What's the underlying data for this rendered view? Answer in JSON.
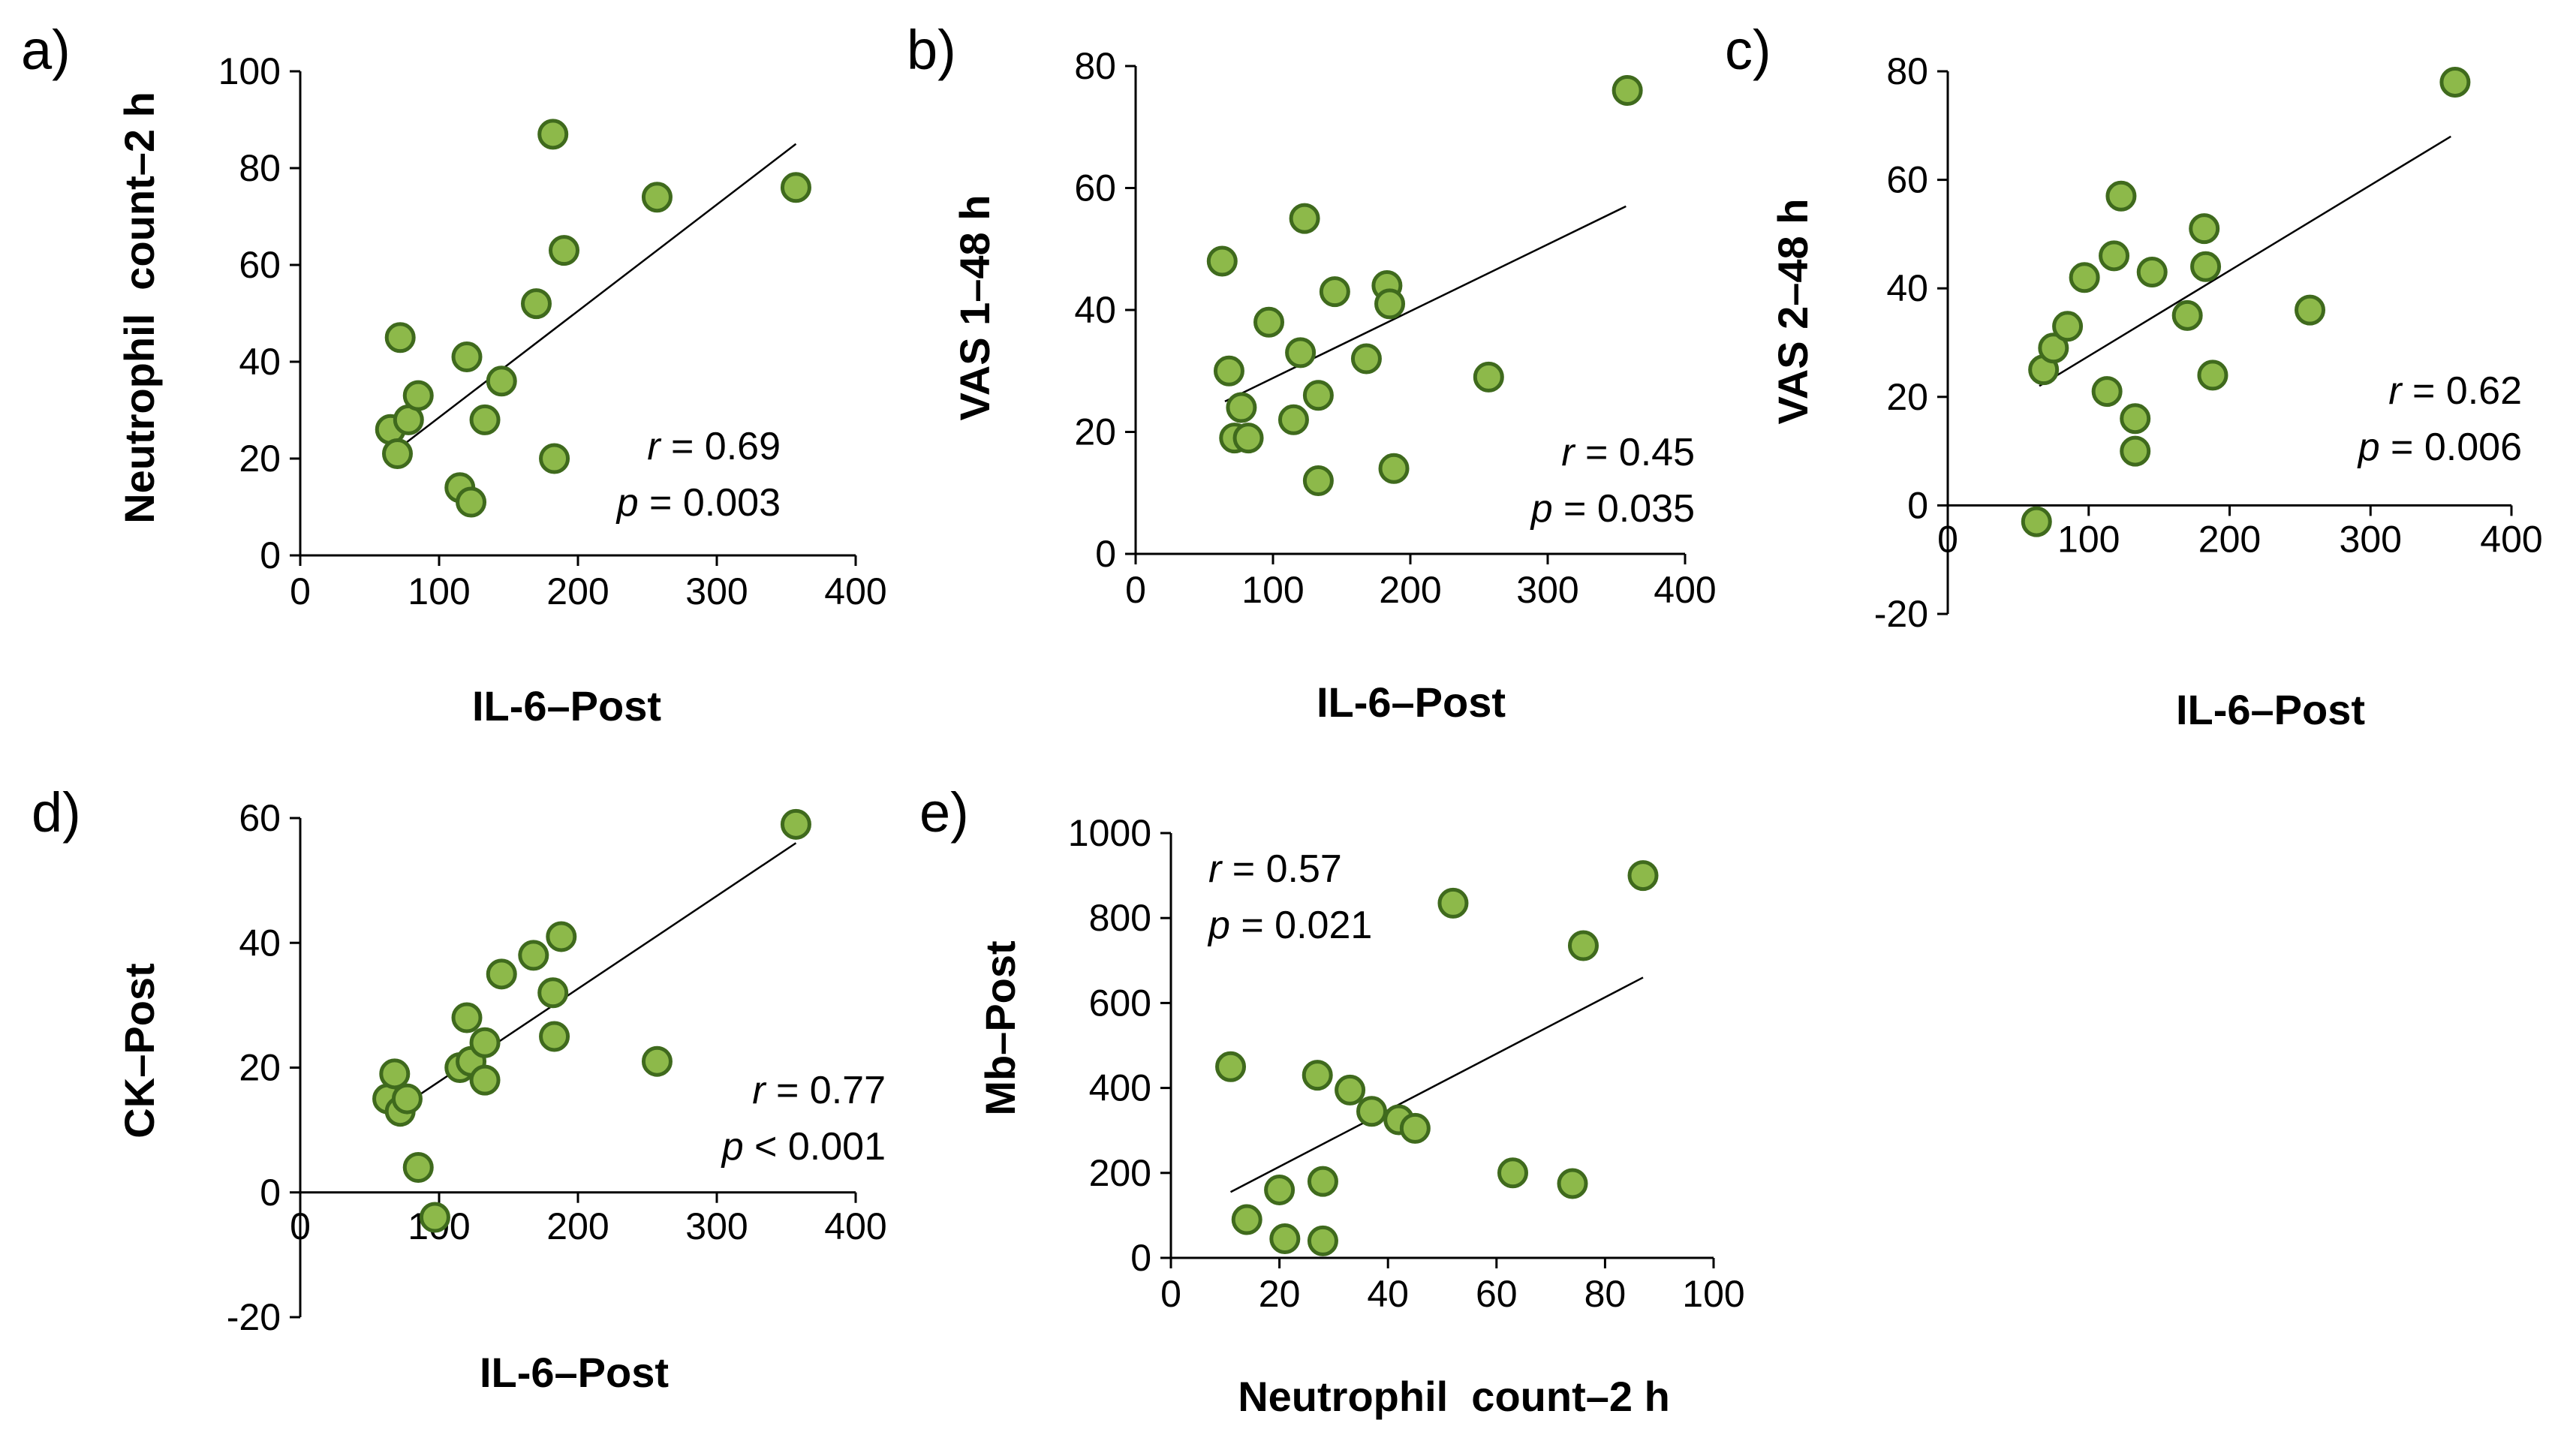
{
  "chart_data": [
    {
      "type": "scatter",
      "panel_label": "a)",
      "xlabel": "IL-6–Post",
      "ylabel": "Neutrophil  count–2 h",
      "xlim": [
        0,
        400
      ],
      "ylim": [
        0,
        100
      ],
      "xticks": [
        0,
        100,
        200,
        300,
        400
      ],
      "yticks": [
        0,
        20,
        40,
        60,
        80,
        100
      ],
      "points": [
        [
          65,
          26
        ],
        [
          70,
          21
        ],
        [
          72,
          45
        ],
        [
          78,
          28
        ],
        [
          85,
          33
        ],
        [
          115,
          14
        ],
        [
          120,
          41
        ],
        [
          123,
          11
        ],
        [
          133,
          28
        ],
        [
          145,
          36
        ],
        [
          170,
          52
        ],
        [
          182,
          87
        ],
        [
          183,
          20
        ],
        [
          190,
          63
        ],
        [
          257,
          74
        ],
        [
          357,
          76
        ]
      ],
      "trendline": [
        [
          75,
          23
        ],
        [
          357,
          85
        ]
      ],
      "annotation": {
        "r_symbol": "r",
        "r_text": " = 0.69",
        "p_symbol": "p",
        "p_text": " = 0.003"
      },
      "marker_fill": "#8DB94A",
      "marker_edge": "#3F6A1D"
    },
    {
      "type": "scatter",
      "panel_label": "b)",
      "xlabel": "IL-6–Post",
      "ylabel": "VAS 1–48 h",
      "xlim": [
        0,
        400
      ],
      "ylim": [
        0,
        80
      ],
      "xticks": [
        0,
        100,
        200,
        300,
        400
      ],
      "yticks": [
        0,
        20,
        40,
        60,
        80
      ],
      "points": [
        [
          63,
          48
        ],
        [
          68,
          30
        ],
        [
          72,
          19
        ],
        [
          77,
          24
        ],
        [
          82,
          19
        ],
        [
          97,
          38
        ],
        [
          115,
          22
        ],
        [
          120,
          33
        ],
        [
          123,
          55
        ],
        [
          133,
          26
        ],
        [
          133,
          12
        ],
        [
          145,
          43
        ],
        [
          168,
          32
        ],
        [
          183,
          44
        ],
        [
          185,
          41
        ],
        [
          188,
          14
        ],
        [
          257,
          29
        ],
        [
          358,
          76
        ]
      ],
      "trendline": [
        [
          65,
          25
        ],
        [
          357,
          57
        ]
      ],
      "annotation": {
        "r_symbol": "r",
        "r_text": " = 0.45",
        "p_symbol": "p",
        "p_text": " = 0.035"
      },
      "marker_fill": "#8DB94A",
      "marker_edge": "#3F6A1D"
    },
    {
      "type": "scatter",
      "panel_label": "c)",
      "xlabel": "IL-6–Post",
      "ylabel": "VAS 2–48 h",
      "xlim": [
        0,
        400
      ],
      "ylim": [
        -20,
        80
      ],
      "xticks": [
        0,
        100,
        200,
        300,
        400
      ],
      "yticks": [
        -20,
        0,
        20,
        40,
        60,
        80
      ],
      "points": [
        [
          63,
          -3
        ],
        [
          68,
          25
        ],
        [
          75,
          29
        ],
        [
          85,
          33
        ],
        [
          97,
          42
        ],
        [
          113,
          21
        ],
        [
          118,
          46
        ],
        [
          123,
          57
        ],
        [
          133,
          16
        ],
        [
          133,
          10
        ],
        [
          145,
          43
        ],
        [
          170,
          35
        ],
        [
          182,
          51
        ],
        [
          183,
          44
        ],
        [
          188,
          24
        ],
        [
          257,
          36
        ],
        [
          360,
          78
        ]
      ],
      "trendline": [
        [
          65,
          22
        ],
        [
          357,
          68
        ]
      ],
      "annotation": {
        "r_symbol": "r",
        "r_text": " = 0.62",
        "p_symbol": "p",
        "p_text": " = 0.006"
      },
      "marker_fill": "#8DB94A",
      "marker_edge": "#3F6A1D"
    },
    {
      "type": "scatter",
      "panel_label": "d)",
      "xlabel": "IL-6–Post",
      "ylabel": "CK–Post",
      "xlim": [
        0,
        400
      ],
      "ylim": [
        -20,
        60
      ],
      "xticks": [
        0,
        100,
        200,
        300,
        400
      ],
      "yticks": [
        -20,
        0,
        20,
        40,
        60
      ],
      "points": [
        [
          63,
          15
        ],
        [
          68,
          19
        ],
        [
          72,
          13
        ],
        [
          77,
          15
        ],
        [
          85,
          4
        ],
        [
          97,
          -4
        ],
        [
          115,
          20
        ],
        [
          120,
          28
        ],
        [
          123,
          21
        ],
        [
          133,
          24
        ],
        [
          133,
          18
        ],
        [
          145,
          35
        ],
        [
          168,
          38
        ],
        [
          182,
          32
        ],
        [
          183,
          25
        ],
        [
          188,
          41
        ],
        [
          257,
          21
        ],
        [
          357,
          59
        ]
      ],
      "trendline": [
        [
          68,
          13
        ],
        [
          357,
          56
        ]
      ],
      "annotation": {
        "r_symbol": "r",
        "r_text": " = 0.77",
        "p_symbol": "p",
        "p_text": " < 0.001"
      },
      "marker_fill": "#8DB94A",
      "marker_edge": "#3F6A1D"
    },
    {
      "type": "scatter",
      "panel_label": "e)",
      "xlabel": "Neutrophil  count–2 h",
      "ylabel": "Mb–Post",
      "xlim": [
        0,
        100
      ],
      "ylim": [
        0,
        1000
      ],
      "xticks": [
        0,
        20,
        40,
        60,
        80,
        100
      ],
      "yticks": [
        0,
        200,
        400,
        600,
        800,
        1000
      ],
      "points": [
        [
          11,
          450
        ],
        [
          14,
          90
        ],
        [
          20,
          160
        ],
        [
          21,
          45
        ],
        [
          27,
          430
        ],
        [
          28,
          180
        ],
        [
          28,
          40
        ],
        [
          33,
          395
        ],
        [
          37,
          345
        ],
        [
          42,
          325
        ],
        [
          45,
          305
        ],
        [
          52,
          835
        ],
        [
          63,
          200
        ],
        [
          74,
          175
        ],
        [
          76,
          735
        ],
        [
          87,
          900
        ]
      ],
      "trendline": [
        [
          11,
          155
        ],
        [
          87,
          660
        ]
      ],
      "annotation": {
        "r_symbol": "r",
        "r_text": " = 0.57",
        "p_symbol": "p",
        "p_text": " = 0.021"
      },
      "marker_fill": "#8DB94A",
      "marker_edge": "#3F6A1D"
    }
  ]
}
